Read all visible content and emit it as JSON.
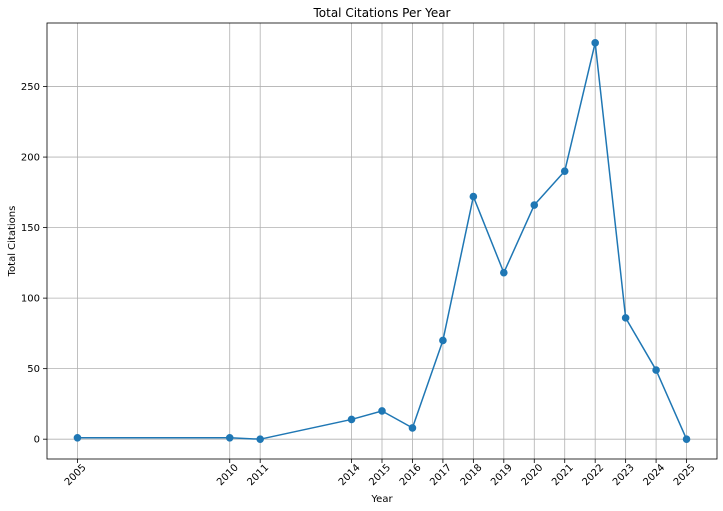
{
  "chart_data": {
    "type": "line",
    "title": "Total Citations Per Year",
    "xlabel": "Year",
    "ylabel": "Total Citations",
    "x": [
      2005,
      2010,
      2011,
      2014,
      2015,
      2016,
      2017,
      2018,
      2019,
      2020,
      2021,
      2022,
      2023,
      2024,
      2025
    ],
    "series": [
      {
        "values": [
          1,
          1,
          0,
          14,
          20,
          8,
          70,
          172,
          118,
          166,
          190,
          281,
          86,
          49,
          0
        ],
        "color": "#1f77b4",
        "marker": "circle"
      }
    ],
    "xticks": [
      "2005",
      "2010",
      "2011",
      "2014",
      "2015",
      "2016",
      "2017",
      "2018",
      "2019",
      "2020",
      "2021",
      "2022",
      "2023",
      "2024",
      "2025"
    ],
    "yticks": [
      0,
      50,
      100,
      150,
      200,
      250
    ],
    "xlim": [
      2004.0,
      2026.0
    ],
    "ylim": [
      -14.05,
      295.05
    ],
    "grid": true,
    "legend": "none"
  }
}
